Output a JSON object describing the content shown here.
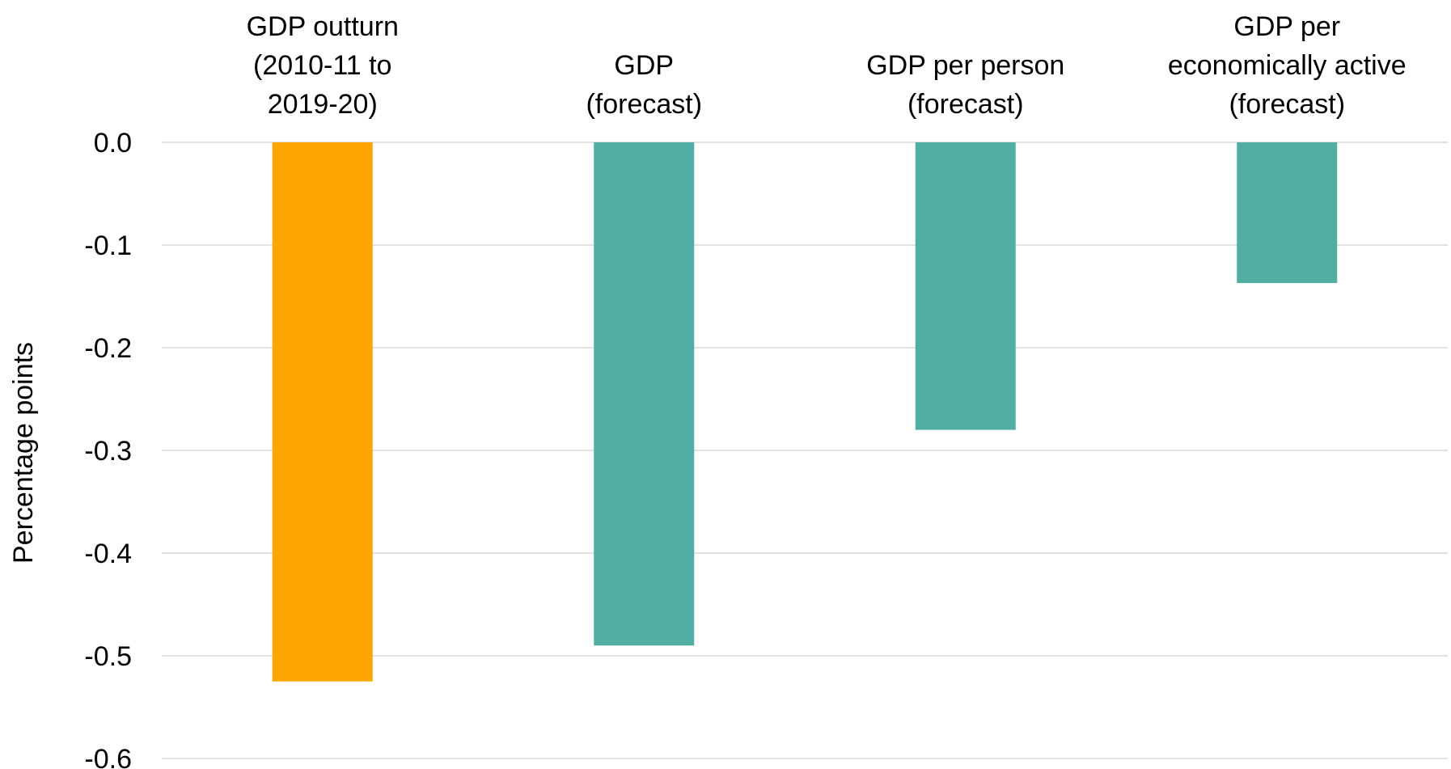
{
  "chart_data": {
    "type": "bar",
    "title": "",
    "xlabel": "",
    "ylabel": "Percentage points",
    "ylim": [
      -0.6,
      0.0
    ],
    "yticks": [
      0.0,
      -0.1,
      -0.2,
      -0.3,
      -0.4,
      -0.5,
      -0.6
    ],
    "ytick_labels": [
      "0.0",
      "-0.1",
      "-0.2",
      "-0.3",
      "-0.4",
      "-0.5",
      "-0.6"
    ],
    "grid": true,
    "categories": [
      [
        "GDP outturn",
        "(2010-11 to",
        "2019-20)"
      ],
      [
        "GDP",
        "(forecast)"
      ],
      [
        "GDP per person",
        "(forecast)"
      ],
      [
        "GDP per",
        "economically active",
        "(forecast)"
      ]
    ],
    "values": [
      -0.525,
      -0.49,
      -0.28,
      -0.137
    ],
    "colors": [
      "#FFA500",
      "#52AEA3",
      "#52AEA3",
      "#52AEA3"
    ]
  }
}
